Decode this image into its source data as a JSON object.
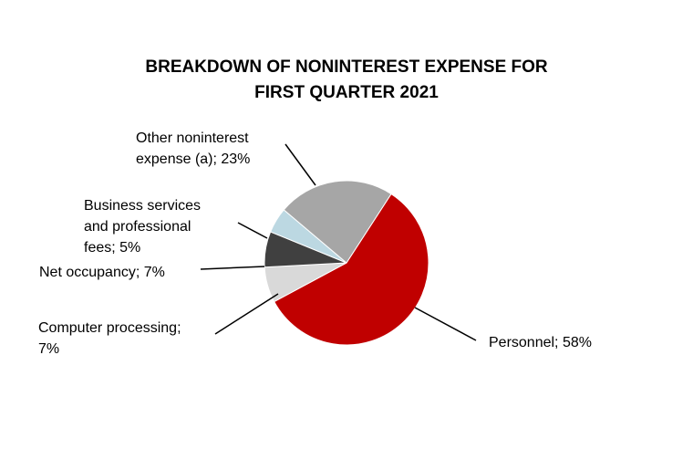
{
  "chart_data": {
    "type": "pie",
    "title": [
      "BREAKDOWN OF NONINTEREST EXPENSE FOR",
      "FIRST QUARTER 2021"
    ],
    "slices": [
      {
        "label_lines": [
          "Personnel; 58%"
        ],
        "value": 58,
        "color": "#c00000"
      },
      {
        "label_lines": [
          "Computer processing;",
          "7%"
        ],
        "value": 7,
        "color": "#d9d9d9"
      },
      {
        "label_lines": [
          "Net occupancy; 7%"
        ],
        "value": 7,
        "color": "#404040"
      },
      {
        "label_lines": [
          "Business services",
          "and professional",
          "fees; 5%"
        ],
        "value": 5,
        "color": "#bcd8e2"
      },
      {
        "label_lines": [
          "Other noninterest",
          "expense (a); 23%"
        ],
        "value": 23,
        "color": "#a6a6a6"
      }
    ]
  }
}
